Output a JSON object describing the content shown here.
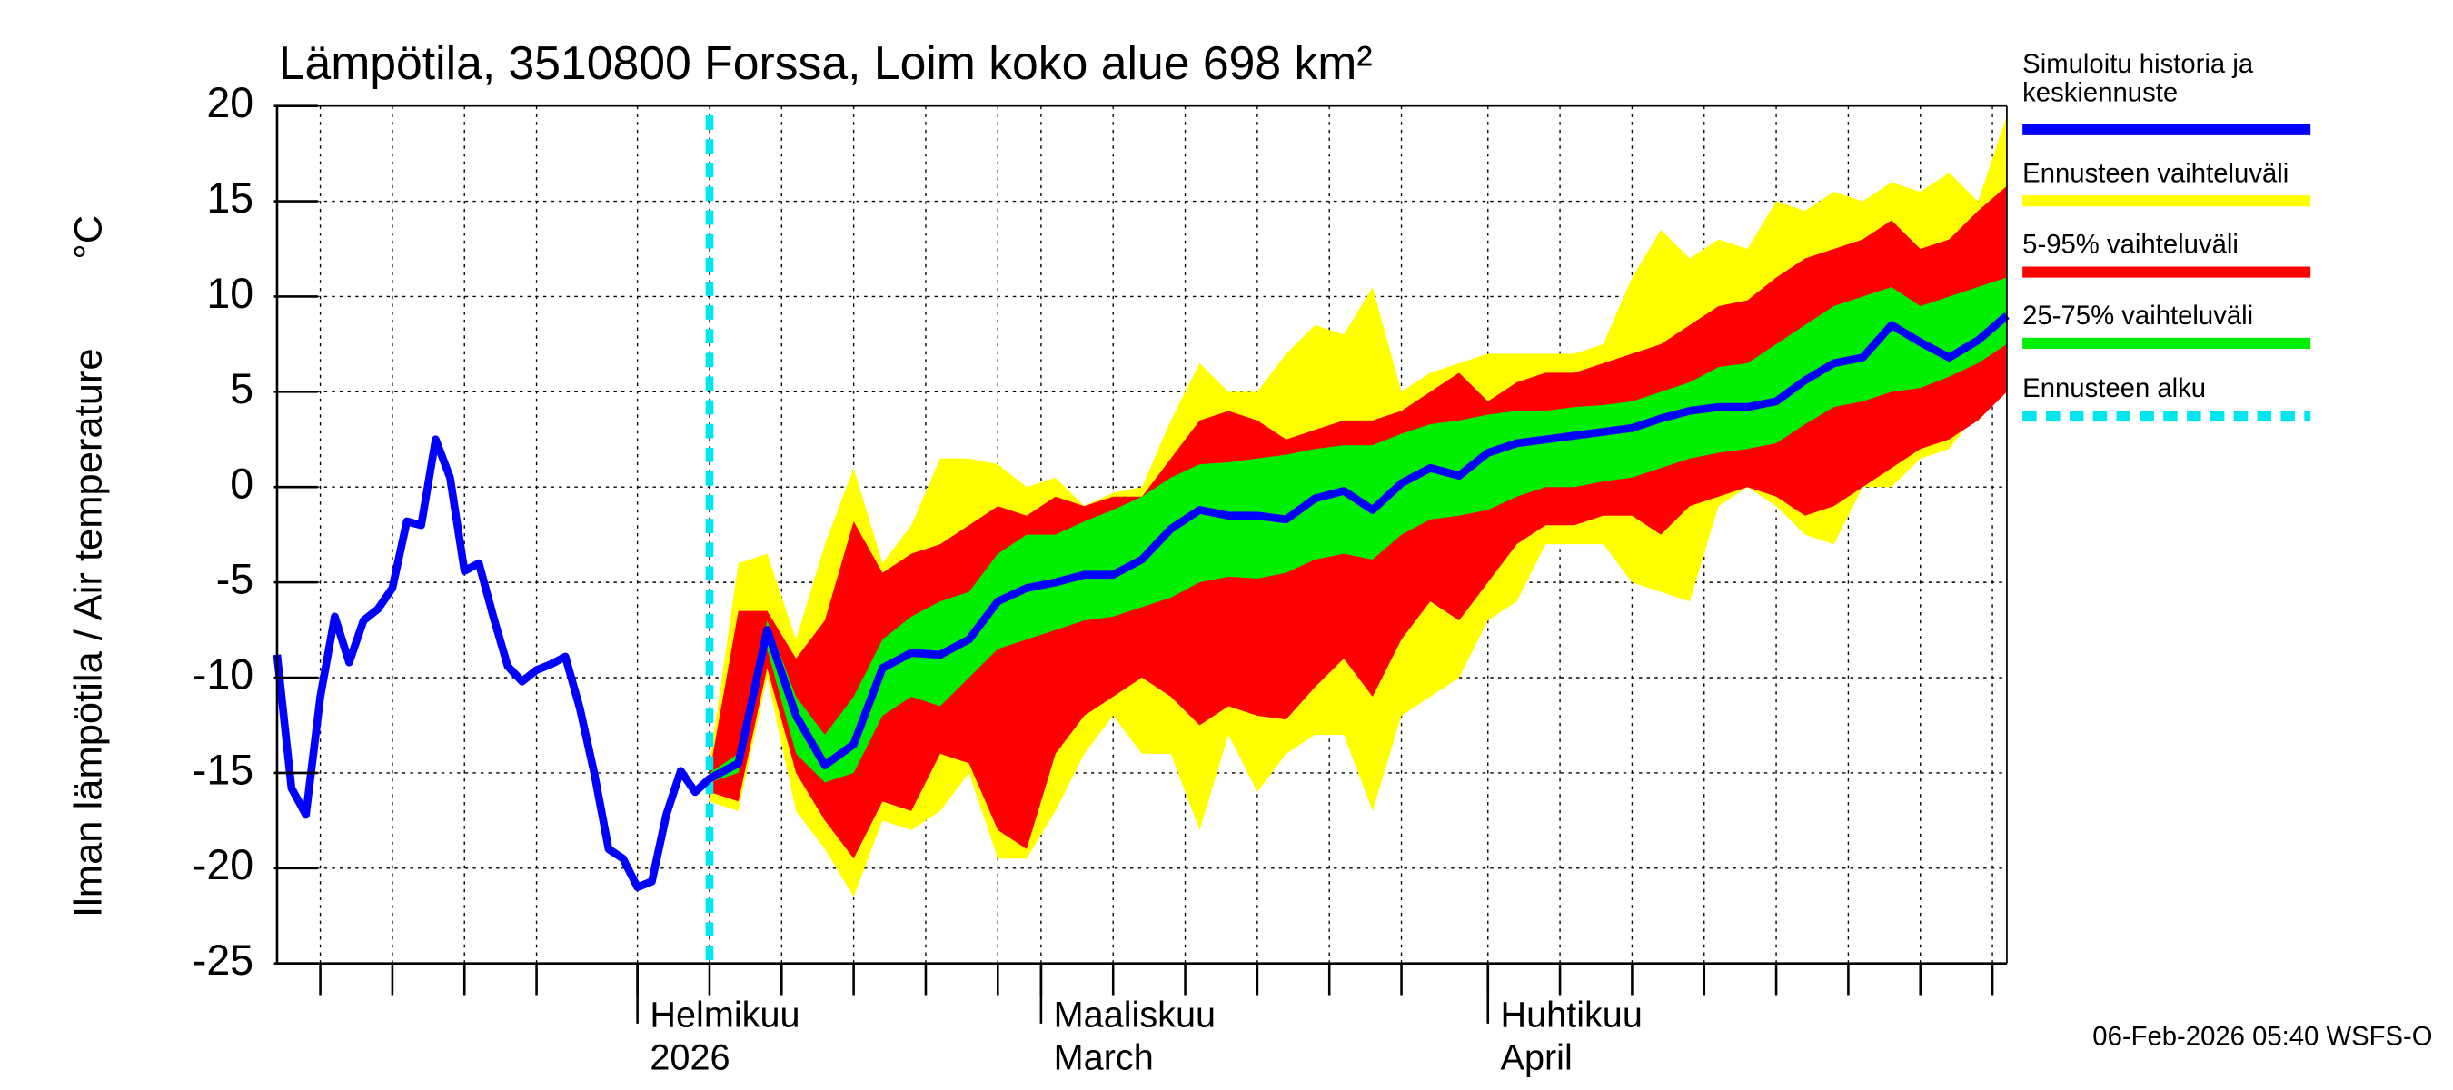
{
  "chart_data": {
    "type": "band-forecast",
    "title": "Lämpötila, 3510800 Forssa, Loim koko alue 698 km²",
    "y_label": "Ilman lämpötila / Air temperature",
    "y_unit": "°C",
    "timestamp": "06-Feb-2026 05:40 WSFS-O",
    "ylim": [
      -25,
      20
    ],
    "yticks": [
      -25,
      -20,
      -15,
      -10,
      -5,
      0,
      5,
      10,
      15,
      20
    ],
    "xlim": [
      0,
      120
    ],
    "xticks": [
      {
        "value": 25,
        "label": "Helmikuu"
      },
      {
        "value": 53,
        "label": "Maaliskuu"
      },
      {
        "value": 84,
        "label": "Huhtikuu"
      }
    ],
    "xtick_sublabels": [
      "2026",
      "March",
      "April"
    ],
    "xgrid": [
      3,
      8,
      13,
      18,
      25,
      30,
      35,
      40,
      45,
      50,
      53,
      58,
      63,
      68,
      73,
      78,
      84,
      89,
      94,
      99,
      104,
      109,
      114,
      119
    ],
    "grid": true,
    "x": [
      0,
      1,
      2,
      3,
      4,
      5,
      6,
      7,
      8,
      9,
      10,
      11,
      12,
      13,
      14,
      15,
      16,
      17,
      18,
      19,
      20,
      21,
      22,
      23,
      24,
      25,
      26,
      27,
      28,
      29,
      30,
      32,
      34,
      36,
      38,
      40,
      42,
      44,
      46,
      48,
      50,
      52,
      54,
      56,
      58,
      60,
      62,
      64,
      66,
      68,
      70,
      72,
      74,
      76,
      78,
      80,
      82,
      84,
      86,
      88,
      90,
      92,
      94,
      96,
      98,
      100,
      102,
      104,
      106,
      108,
      110,
      112,
      114,
      116,
      118,
      120
    ],
    "series": [
      {
        "name": "Simuloitu historia ja keskiennuste",
        "color": "#0000ff",
        "values": [
          -8.8,
          -15.8,
          -17.2,
          -11,
          -6.8,
          -9.2,
          -7,
          -6.4,
          -5.3,
          -1.8,
          -2,
          2.5,
          0.5,
          -4.4,
          -4,
          -6.8,
          -9.4,
          -10.2,
          -9.6,
          -9.3,
          -8.9,
          -11.6,
          -15,
          -19,
          -19.5,
          -21,
          -20.7,
          -17.2,
          -14.9,
          -16,
          -15.3,
          -14.5,
          -7.5,
          -12,
          -14.6,
          -13.5,
          -9.5,
          -8.7,
          -8.8,
          -8,
          -6,
          -5.3,
          -5,
          -4.6,
          -4.6,
          -3.8,
          -2.2,
          -1.2,
          -1.5,
          -1.5,
          -1.7,
          -0.6,
          -0.2,
          -1.2,
          0.2,
          1,
          0.6,
          1.8,
          2.3,
          2.5,
          2.7,
          2.9,
          3.1,
          3.6,
          4,
          4.2,
          4.2,
          4.5,
          5.6,
          6.5,
          6.8,
          8.5,
          7.6,
          6.8,
          7.7,
          9
        ]
      },
      {
        "name": "Ennusteen vaihteluväli",
        "color": "#ffff00",
        "low": [
          null,
          null,
          null,
          null,
          null,
          null,
          null,
          null,
          null,
          null,
          null,
          null,
          null,
          null,
          null,
          null,
          null,
          null,
          null,
          null,
          null,
          null,
          null,
          null,
          null,
          null,
          null,
          null,
          null,
          null,
          -16.5,
          -17,
          -10,
          -17,
          -19,
          -21.5,
          -17.5,
          -18,
          -17,
          -15,
          -19.5,
          -19.5,
          -17,
          -14,
          -12,
          -14,
          -14,
          -18,
          -13,
          -16,
          -14,
          -13,
          -13,
          -17,
          -12,
          -11,
          -10,
          -7,
          -6,
          -3,
          -3,
          -3,
          -5,
          -5.5,
          -6,
          -1,
          0,
          -1,
          -2.5,
          -3,
          0,
          0,
          1.5,
          2,
          4,
          5
        ],
        "high": [
          null,
          null,
          null,
          null,
          null,
          null,
          null,
          null,
          null,
          null,
          null,
          null,
          null,
          null,
          null,
          null,
          null,
          null,
          null,
          null,
          null,
          null,
          null,
          null,
          null,
          null,
          null,
          null,
          null,
          null,
          -14.5,
          -4,
          -3.5,
          -8,
          -3,
          1,
          -4,
          -2,
          1.5,
          1.5,
          1.2,
          0,
          0.5,
          -1,
          -0.3,
          0,
          3.5,
          6.5,
          5,
          5,
          7,
          8.5,
          8,
          10.5,
          5,
          6,
          6.5,
          7,
          7,
          7,
          7,
          7.5,
          11,
          13.5,
          12,
          13,
          12.5,
          15,
          14.5,
          15.5,
          15,
          16,
          15.5,
          16.5,
          15,
          19.5
        ]
      },
      {
        "name": "5-95% vaihteluväli",
        "color": "#ff0000",
        "low": [
          null,
          null,
          null,
          null,
          null,
          null,
          null,
          null,
          null,
          null,
          null,
          null,
          null,
          null,
          null,
          null,
          null,
          null,
          null,
          null,
          null,
          null,
          null,
          null,
          null,
          null,
          null,
          null,
          null,
          null,
          -16,
          -16.5,
          -9.5,
          -15,
          -17.5,
          -19.5,
          -16.5,
          -17,
          -14,
          -14.5,
          -18,
          -19,
          -14,
          -12,
          -11,
          -10,
          -11,
          -12.5,
          -11.5,
          -12,
          -12.2,
          -10.5,
          -9,
          -11,
          -8,
          -6,
          -7,
          -5,
          -3,
          -2,
          -2,
          -1.5,
          -1.5,
          -2.5,
          -1,
          -0.5,
          0,
          -0.5,
          -1.5,
          -1,
          0,
          1,
          2,
          2.5,
          3.5,
          5
        ],
        "high": [
          null,
          null,
          null,
          null,
          null,
          null,
          null,
          null,
          null,
          null,
          null,
          null,
          null,
          null,
          null,
          null,
          null,
          null,
          null,
          null,
          null,
          null,
          null,
          null,
          null,
          null,
          null,
          null,
          null,
          null,
          -15,
          -6.5,
          -6.5,
          -9,
          -7,
          -1.8,
          -4.5,
          -3.5,
          -3,
          -2,
          -1,
          -1.5,
          -0.5,
          -1,
          -0.5,
          -0.5,
          1.5,
          3.5,
          4,
          3.5,
          2.5,
          3,
          3.5,
          3.5,
          4,
          5,
          6,
          4.5,
          5.5,
          6,
          6,
          6.5,
          7,
          7.5,
          8.5,
          9.5,
          9.8,
          11,
          12,
          12.5,
          13,
          14,
          12.5,
          13,
          14.5,
          15.8
        ]
      },
      {
        "name": "25-75% vaihteluväli",
        "color": "#00ee00",
        "low": [
          null,
          null,
          null,
          null,
          null,
          null,
          null,
          null,
          null,
          null,
          null,
          null,
          null,
          null,
          null,
          null,
          null,
          null,
          null,
          null,
          null,
          null,
          null,
          null,
          null,
          null,
          null,
          null,
          null,
          null,
          -15.5,
          -15,
          -8.5,
          -14,
          -15.5,
          -15,
          -12,
          -11,
          -11.5,
          -10,
          -8.5,
          -8,
          -7.5,
          -7,
          -6.8,
          -6.3,
          -5.8,
          -5,
          -4.7,
          -4.8,
          -4.5,
          -3.8,
          -3.5,
          -3.8,
          -2.5,
          -1.7,
          -1.5,
          -1.2,
          -0.5,
          0,
          0,
          0.3,
          0.5,
          1,
          1.5,
          1.8,
          2,
          2.3,
          3.3,
          4.2,
          4.5,
          5,
          5.2,
          5.8,
          6.5,
          7.5
        ],
        "high": [
          null,
          null,
          null,
          null,
          null,
          null,
          null,
          null,
          null,
          null,
          null,
          null,
          null,
          null,
          null,
          null,
          null,
          null,
          null,
          null,
          null,
          null,
          null,
          null,
          null,
          null,
          null,
          null,
          null,
          null,
          -15,
          -14,
          -7,
          -11,
          -13,
          -11,
          -8,
          -6.8,
          -6,
          -5.5,
          -3.5,
          -2.5,
          -2.5,
          -1.8,
          -1.2,
          -0.5,
          0.5,
          1.2,
          1.3,
          1.5,
          1.7,
          2,
          2.2,
          2.2,
          2.8,
          3.3,
          3.5,
          3.8,
          4,
          4,
          4.2,
          4.3,
          4.5,
          5,
          5.5,
          6.3,
          6.5,
          7.5,
          8.5,
          9.5,
          10,
          10.5,
          9.5,
          10,
          10.5,
          11
        ]
      }
    ],
    "forecast_start": {
      "name": "Ennusteen alku",
      "color": "#00e5ee",
      "x": 30
    }
  }
}
